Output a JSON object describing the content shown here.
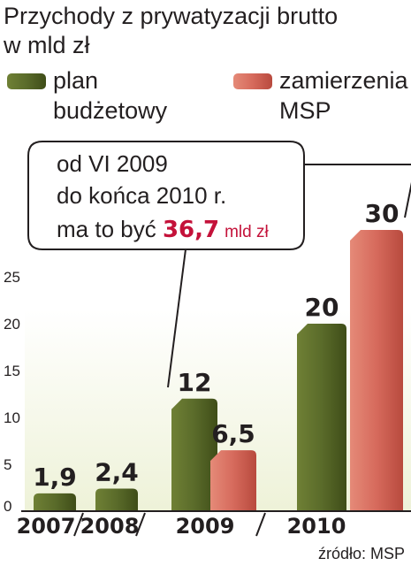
{
  "chart_data": {
    "type": "bar",
    "title_lines": [
      "Przychody z prywatyzacji brutto",
      "w mld zł"
    ],
    "legend": [
      {
        "lines": [
          "plan",
          "budżetowy"
        ],
        "color": "#5a6b2a"
      },
      {
        "lines": [
          "zamierzenia",
          "MSP"
        ],
        "color": "#d66a5c"
      }
    ],
    "categories": [
      "2007",
      "2008",
      "2009",
      "2010"
    ],
    "series": [
      {
        "name": "plan budżetowy",
        "values": [
          1.9,
          2.4,
          12,
          20
        ],
        "labels": [
          "1,9",
          "2,4",
          "12",
          "20"
        ],
        "color": "#5a6b2a"
      },
      {
        "name": "zamierzenia MSP",
        "values": [
          null,
          null,
          6.5,
          30
        ],
        "labels": [
          "",
          "",
          "6,5",
          "30"
        ],
        "color": "#d66a5c"
      }
    ],
    "yticks": [
      "0",
      "5",
      "10",
      "15",
      "20",
      "25"
    ],
    "ylim": [
      0,
      30
    ],
    "annotation": {
      "lines": [
        "od VI 2009",
        "do końca 2010 r."
      ],
      "prefix": "ma to być",
      "value": "36,7",
      "unit": "mld zł"
    },
    "source": "źródło: MSP"
  }
}
